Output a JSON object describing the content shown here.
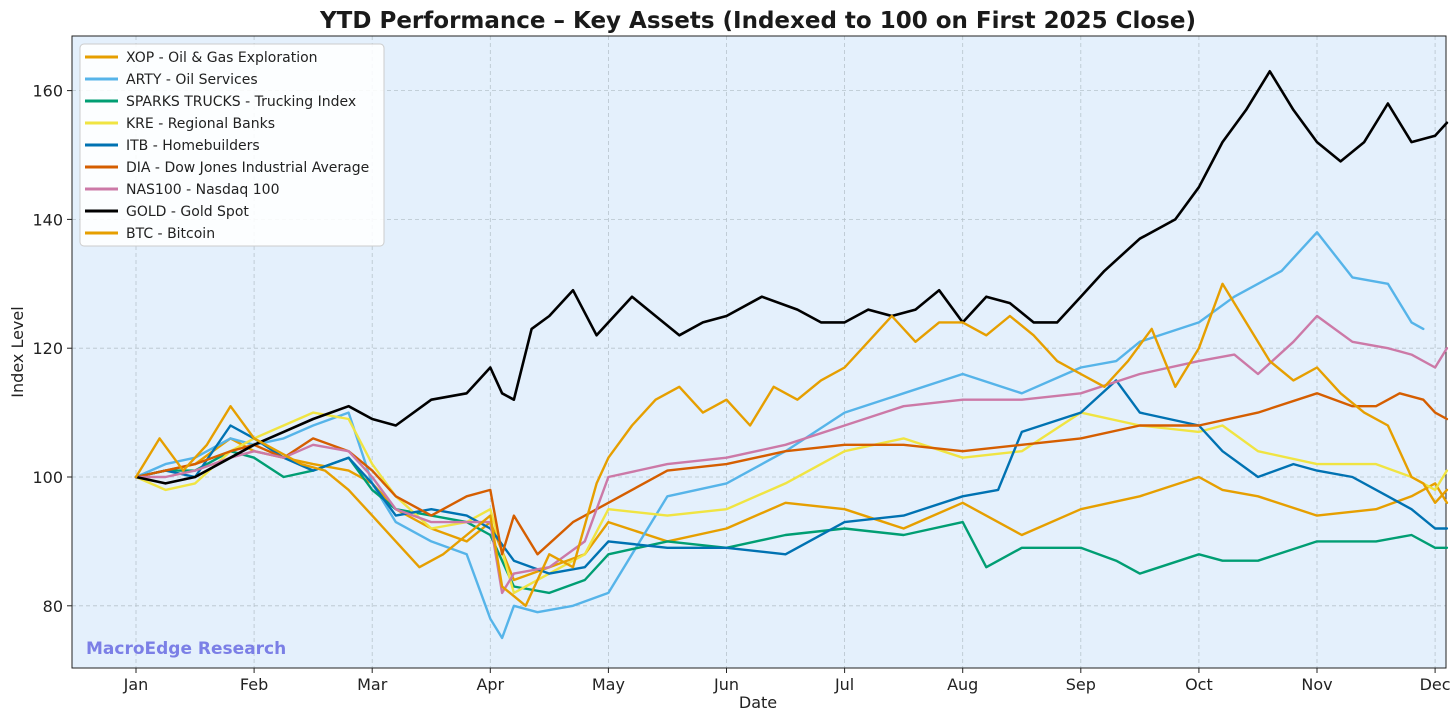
{
  "chart_data": {
    "type": "line",
    "title": "YTD Performance – Key Assets (Indexed to 100 on First 2025 Close)",
    "xlabel": "Date",
    "ylabel": "Index Level",
    "xlim": [
      0,
      11.3
    ],
    "ylim": [
      70,
      168
    ],
    "xticks": [
      {
        "label": "Jan",
        "value": 0
      },
      {
        "label": "Feb",
        "value": 1
      },
      {
        "label": "Mar",
        "value": 2
      },
      {
        "label": "Apr",
        "value": 3
      },
      {
        "label": "May",
        "value": 4
      },
      {
        "label": "Jun",
        "value": 5
      },
      {
        "label": "Jul",
        "value": 6
      },
      {
        "label": "Aug",
        "value": 7
      },
      {
        "label": "Sep",
        "value": 8
      },
      {
        "label": "Oct",
        "value": 9
      },
      {
        "label": "Nov",
        "value": 10
      },
      {
        "label": "Dec",
        "value": 11
      }
    ],
    "yticks": [
      80,
      100,
      120,
      140,
      160
    ],
    "grid": true,
    "legend_position": "top-left",
    "watermark": "MacroEdge Research",
    "colors": {
      "plot_bg": "#e4f0fc",
      "watermark": "#7b7fe6"
    },
    "series": [
      {
        "name": "XOP - Oil & Gas Exploration",
        "color": "#e69f00",
        "x": [
          0,
          0.25,
          0.5,
          0.8,
          1.0,
          1.25,
          1.5,
          1.8,
          2.0,
          2.2,
          2.5,
          2.8,
          3.0,
          3.2,
          3.5,
          3.8,
          4.0,
          4.5,
          5.0,
          5.5,
          6.0,
          6.5,
          7.0,
          7.5,
          8.0,
          8.5,
          9.0,
          9.2,
          9.5,
          10.0,
          10.5,
          10.8,
          11.0,
          11.1
        ],
        "y": [
          100,
          101,
          102,
          106,
          104,
          103,
          102,
          101,
          99,
          95,
          92,
          90,
          93,
          84,
          86,
          88,
          93,
          90,
          92,
          96,
          95,
          92,
          96,
          91,
          95,
          97,
          100,
          98,
          97,
          94,
          95,
          97,
          99,
          96
        ]
      },
      {
        "name": "ARTY - Oil Services",
        "color": "#56b4e9",
        "x": [
          0,
          0.25,
          0.5,
          0.8,
          1.0,
          1.25,
          1.5,
          1.8,
          2.0,
          2.2,
          2.5,
          2.8,
          3.0,
          3.1,
          3.2,
          3.4,
          3.7,
          4.0,
          4.5,
          5.0,
          5.5,
          6.0,
          6.5,
          7.0,
          7.5,
          8.0,
          8.3,
          8.5,
          9.0,
          9.3,
          9.5,
          9.7,
          10.0,
          10.3,
          10.6,
          10.8,
          10.9
        ],
        "y": [
          100,
          102,
          103,
          106,
          105,
          106,
          108,
          110,
          99,
          93,
          90,
          88,
          78,
          75,
          80,
          79,
          80,
          82,
          97,
          99,
          104,
          110,
          113,
          116,
          113,
          117,
          118,
          121,
          124,
          128,
          130,
          132,
          138,
          131,
          130,
          124,
          123
        ]
      },
      {
        "name": "SPARKS TRUCKS - Trucking Index",
        "color": "#009e73",
        "x": [
          0,
          0.25,
          0.5,
          0.8,
          1.0,
          1.25,
          1.5,
          1.8,
          2.0,
          2.2,
          2.5,
          2.8,
          3.0,
          3.2,
          3.5,
          3.8,
          4.0,
          4.5,
          5.0,
          5.5,
          6.0,
          6.5,
          7.0,
          7.2,
          7.5,
          8.0,
          8.3,
          8.5,
          9.0,
          9.2,
          9.5,
          10.0,
          10.5,
          10.8,
          11.0,
          11.1
        ],
        "y": [
          100,
          101,
          101,
          104,
          103,
          100,
          101,
          103,
          98,
          95,
          94,
          93,
          91,
          83,
          82,
          84,
          88,
          90,
          89,
          91,
          92,
          91,
          93,
          86,
          89,
          89,
          87,
          85,
          88,
          87,
          87,
          90,
          90,
          91,
          89,
          89
        ]
      },
      {
        "name": "KRE - Regional Banks",
        "color": "#f0e442",
        "x": [
          0,
          0.25,
          0.5,
          0.8,
          1.0,
          1.25,
          1.5,
          1.8,
          2.0,
          2.2,
          2.5,
          2.8,
          3.0,
          3.2,
          3.5,
          3.8,
          4.0,
          4.5,
          5.0,
          5.5,
          6.0,
          6.5,
          7.0,
          7.5,
          8.0,
          8.5,
          9.0,
          9.2,
          9.5,
          10.0,
          10.5,
          10.8,
          11.0,
          11.1
        ],
        "y": [
          100,
          98,
          99,
          104,
          106,
          108,
          110,
          109,
          102,
          97,
          92,
          93,
          95,
          82,
          85,
          88,
          95,
          94,
          95,
          99,
          104,
          106,
          103,
          104,
          110,
          108,
          107,
          108,
          104,
          102,
          102,
          100,
          98,
          101
        ]
      },
      {
        "name": "ITB - Homebuilders",
        "color": "#0072b2",
        "x": [
          0,
          0.25,
          0.5,
          0.8,
          1.0,
          1.25,
          1.5,
          1.8,
          2.0,
          2.2,
          2.5,
          2.8,
          3.0,
          3.2,
          3.5,
          3.8,
          4.0,
          4.5,
          5.0,
          5.5,
          6.0,
          6.5,
          7.0,
          7.3,
          7.5,
          8.0,
          8.3,
          8.5,
          9.0,
          9.2,
          9.5,
          9.8,
          10.0,
          10.3,
          10.6,
          10.8,
          11.0,
          11.1
        ],
        "y": [
          100,
          101,
          100,
          108,
          106,
          103,
          101,
          103,
          99,
          94,
          95,
          94,
          92,
          87,
          85,
          86,
          90,
          89,
          89,
          88,
          93,
          94,
          97,
          98,
          107,
          110,
          115,
          110,
          108,
          104,
          100,
          102,
          101,
          100,
          97,
          95,
          92,
          92
        ]
      },
      {
        "name": "DIA - Dow Jones Industrial Average",
        "color": "#d55e00",
        "x": [
          0,
          0.25,
          0.5,
          0.8,
          1.0,
          1.25,
          1.5,
          1.8,
          2.0,
          2.2,
          2.5,
          2.8,
          3.0,
          3.1,
          3.2,
          3.4,
          3.7,
          4.0,
          4.5,
          5.0,
          5.5,
          6.0,
          6.5,
          7.0,
          7.5,
          8.0,
          8.5,
          9.0,
          9.5,
          10.0,
          10.3,
          10.5,
          10.7,
          10.9,
          11.0,
          11.1
        ],
        "y": [
          100,
          101,
          102,
          104,
          105,
          103,
          106,
          104,
          101,
          97,
          94,
          97,
          98,
          88,
          94,
          88,
          93,
          96,
          101,
          102,
          104,
          105,
          105,
          104,
          105,
          106,
          108,
          108,
          110,
          113,
          111,
          111,
          113,
          112,
          110,
          109
        ]
      },
      {
        "name": "NAS100 - Nasdaq 100",
        "color": "#cc79a7",
        "x": [
          0,
          0.25,
          0.5,
          0.8,
          1.0,
          1.25,
          1.5,
          1.8,
          2.0,
          2.2,
          2.5,
          2.8,
          3.0,
          3.1,
          3.2,
          3.5,
          3.8,
          4.0,
          4.5,
          5.0,
          5.5,
          6.0,
          6.5,
          7.0,
          7.5,
          8.0,
          8.5,
          9.0,
          9.3,
          9.5,
          9.8,
          10.0,
          10.3,
          10.6,
          10.8,
          11.0,
          11.1
        ],
        "y": [
          100,
          100,
          101,
          103,
          104,
          103,
          105,
          104,
          100,
          95,
          93,
          93,
          93,
          82,
          85,
          86,
          90,
          100,
          102,
          103,
          105,
          108,
          111,
          112,
          112,
          113,
          116,
          118,
          119,
          116,
          121,
          125,
          121,
          120,
          119,
          117,
          120
        ]
      },
      {
        "name": "GOLD - Gold Spot",
        "color": "#000000",
        "x": [
          0,
          0.25,
          0.5,
          0.8,
          1.0,
          1.25,
          1.5,
          1.8,
          2.0,
          2.2,
          2.5,
          2.8,
          3.0,
          3.1,
          3.2,
          3.35,
          3.5,
          3.7,
          3.9,
          4.0,
          4.2,
          4.4,
          4.6,
          4.8,
          5.0,
          5.3,
          5.6,
          5.8,
          6.0,
          6.2,
          6.4,
          6.6,
          6.8,
          7.0,
          7.2,
          7.4,
          7.6,
          7.8,
          8.0,
          8.2,
          8.5,
          8.8,
          9.0,
          9.2,
          9.4,
          9.6,
          9.8,
          10.0,
          10.2,
          10.4,
          10.6,
          10.8,
          11.0,
          11.1
        ],
        "y": [
          100,
          99,
          100,
          103,
          105,
          107,
          109,
          111,
          109,
          108,
          112,
          113,
          117,
          113,
          112,
          123,
          125,
          129,
          122,
          124,
          128,
          125,
          122,
          124,
          125,
          128,
          126,
          124,
          124,
          126,
          125,
          126,
          129,
          124,
          128,
          127,
          124,
          124,
          128,
          132,
          137,
          140,
          145,
          152,
          157,
          163,
          157,
          152,
          149,
          152,
          158,
          152,
          153,
          155
        ]
      },
      {
        "name": "BTC - Bitcoin",
        "color": "#e69f00",
        "x": [
          0,
          0.2,
          0.4,
          0.6,
          0.8,
          1.0,
          1.2,
          1.4,
          1.6,
          1.8,
          2.0,
          2.2,
          2.4,
          2.6,
          2.8,
          3.0,
          3.1,
          3.3,
          3.5,
          3.7,
          3.9,
          4.0,
          4.2,
          4.4,
          4.6,
          4.8,
          5.0,
          5.2,
          5.4,
          5.6,
          5.8,
          6.0,
          6.2,
          6.4,
          6.6,
          6.8,
          7.0,
          7.2,
          7.4,
          7.6,
          7.8,
          8.0,
          8.2,
          8.4,
          8.6,
          8.8,
          9.0,
          9.2,
          9.4,
          9.6,
          9.8,
          10.0,
          10.2,
          10.4,
          10.6,
          10.8,
          10.9,
          11.0,
          11.1
        ],
        "y": [
          100,
          106,
          101,
          105,
          111,
          106,
          104,
          102,
          101,
          98,
          94,
          90,
          86,
          88,
          91,
          94,
          83,
          80,
          88,
          86,
          99,
          103,
          108,
          112,
          114,
          110,
          112,
          108,
          114,
          112,
          115,
          117,
          121,
          125,
          121,
          124,
          124,
          122,
          125,
          122,
          118,
          116,
          114,
          118,
          123,
          114,
          120,
          130,
          124,
          118,
          115,
          117,
          113,
          110,
          108,
          100,
          99,
          96,
          98
        ]
      }
    ]
  }
}
